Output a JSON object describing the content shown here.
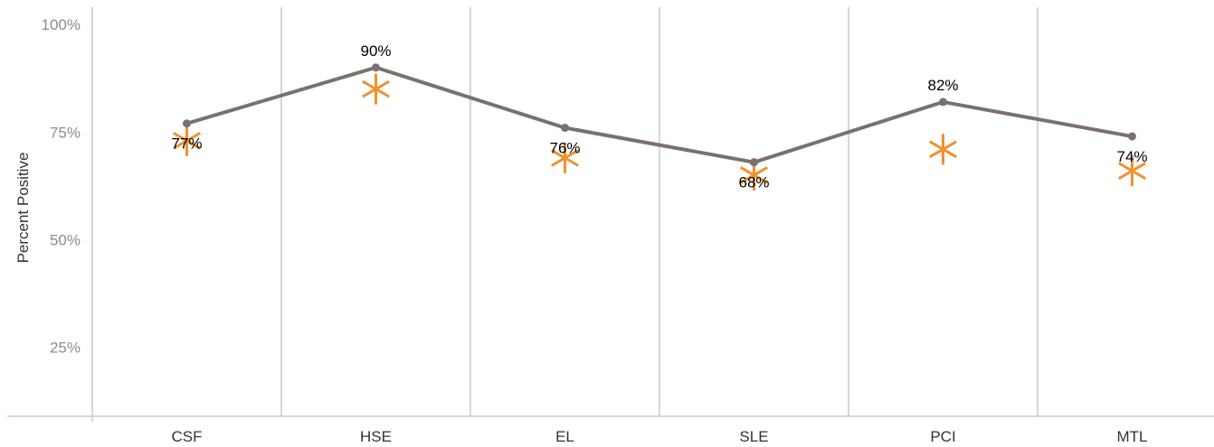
{
  "chart_data": {
    "type": "line",
    "categories": [
      "CSF",
      "HSE",
      "EL",
      "SLE",
      "PCI",
      "MTL"
    ],
    "series": [
      {
        "values": [
          77,
          90,
          76,
          68,
          82,
          74
        ],
        "data_labels": [
          "77%",
          "90%",
          "76%",
          "68%",
          "82%",
          "74%"
        ],
        "color": "#7a716e",
        "marker": "circle"
      },
      {
        "values": [
          73,
          85,
          69,
          65,
          71,
          66
        ],
        "color": "#f0922e",
        "marker": "asterisk"
      }
    ],
    "ylabel": "Percent Positive",
    "xlabel": "",
    "yticks": [
      "100%",
      "75%",
      "50%",
      "25%"
    ],
    "ytick_values": [
      100,
      75,
      50,
      25
    ],
    "ylim": [
      9,
      104
    ],
    "grid": "vertical category separators"
  }
}
